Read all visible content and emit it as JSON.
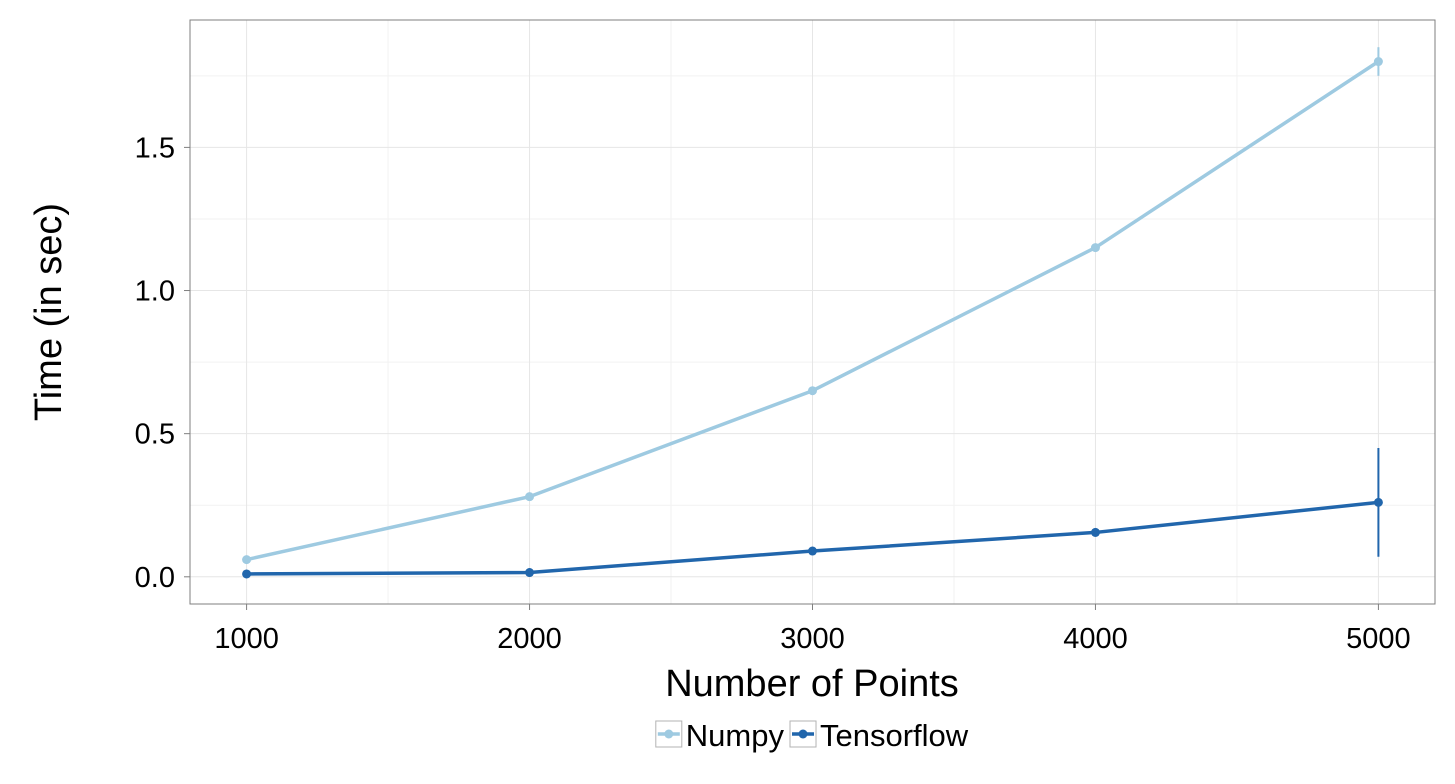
{
  "chart_data": {
    "type": "line",
    "title": "",
    "xlabel": "Number of Points",
    "ylabel": "Time (in sec)",
    "x": [
      1000,
      2000,
      3000,
      4000,
      5000
    ],
    "x_ticks": [
      "1000",
      "2000",
      "3000",
      "4000",
      "5000"
    ],
    "y_ticks": [
      "0.0",
      "0.5",
      "1.0",
      "1.5"
    ],
    "xlim": [
      800,
      5200
    ],
    "ylim": [
      -0.095,
      1.945
    ],
    "grid": true,
    "legend_position": "bottom",
    "series": [
      {
        "name": "Numpy",
        "color": "#9ecae1",
        "values": [
          0.06,
          0.28,
          0.65,
          1.15,
          1.8
        ],
        "error": [
          0.01,
          0.01,
          0.01,
          0.01,
          0.05
        ]
      },
      {
        "name": "Tensorflow",
        "color": "#2166ac",
        "values": [
          0.01,
          0.015,
          0.09,
          0.155,
          0.26
        ],
        "error": [
          0.005,
          0.015,
          0.01,
          0.015,
          0.19
        ]
      }
    ]
  }
}
